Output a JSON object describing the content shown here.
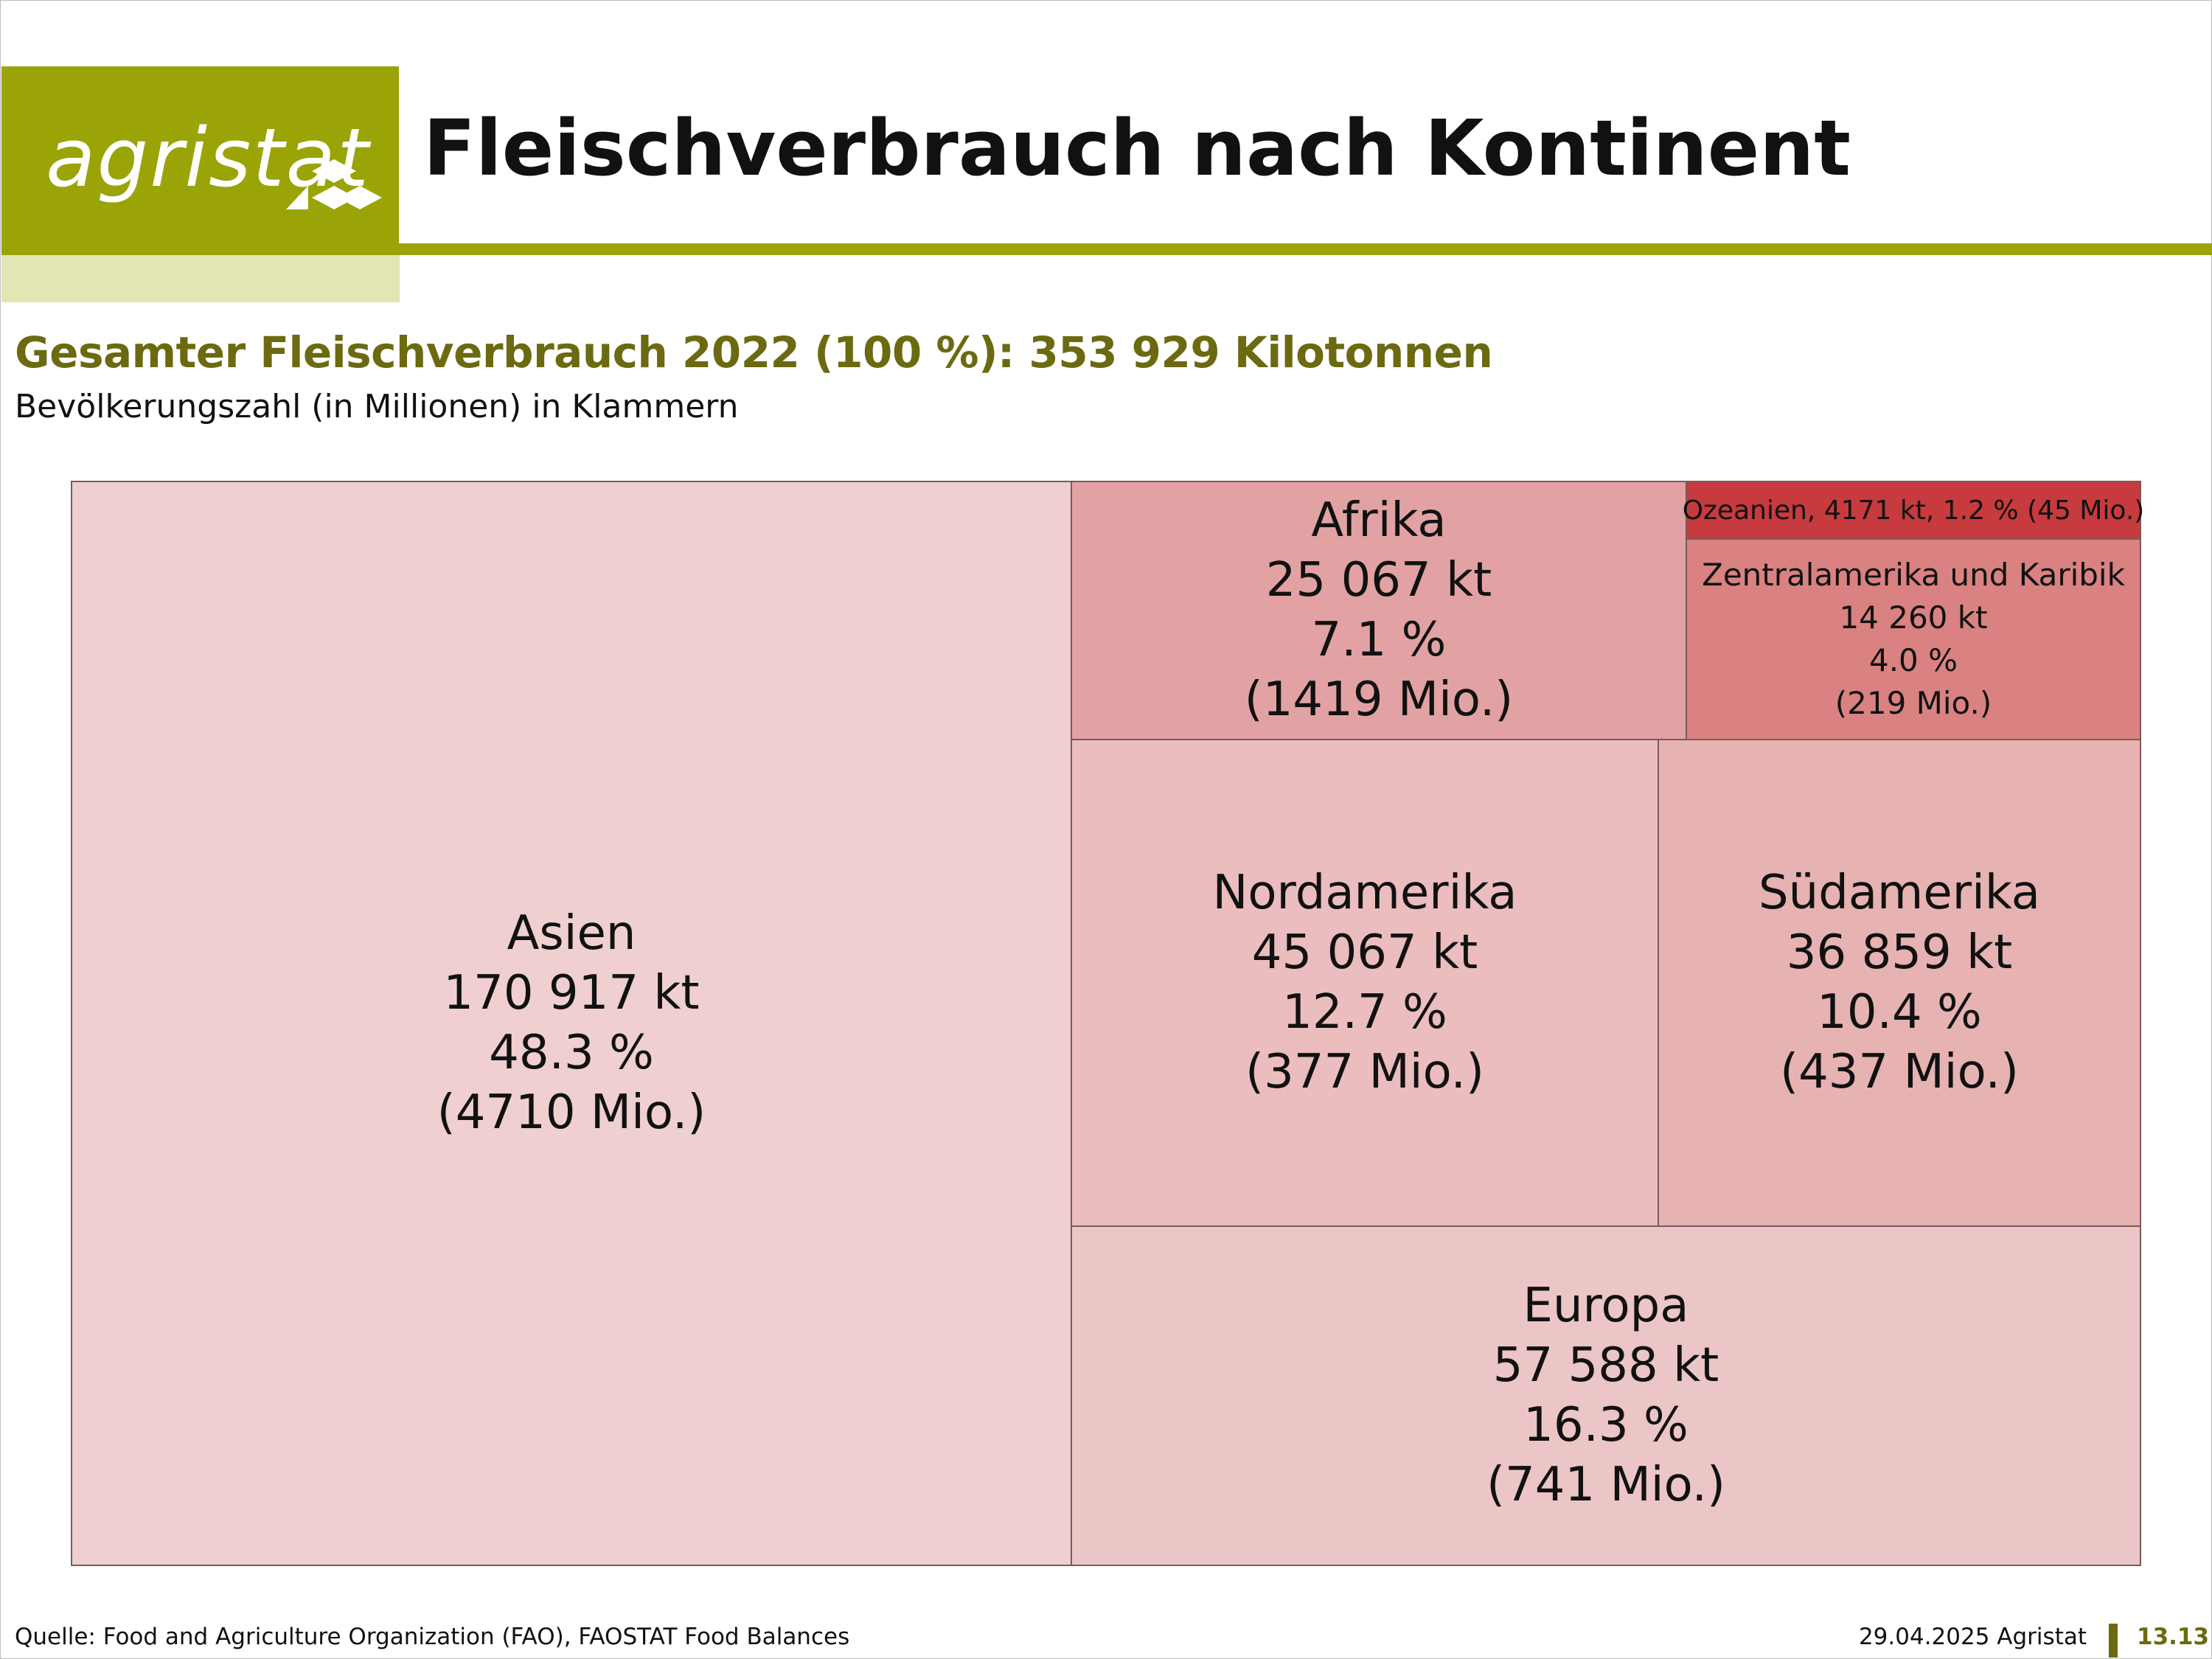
{
  "header": {
    "logo_text": "agristat",
    "title": "Fleischverbrauch nach Kontinent"
  },
  "subtitle": "Gesamter Fleischverbrauch 2022 (100 %): 353 929 Kilotonnen",
  "note": "Bevölkerungszahl (in Millionen) in Klammern",
  "chart_data": {
    "type": "treemap",
    "title": "Gesamter Fleischverbrauch 2022 (100 %): 353 929 Kilotonnen",
    "subtitle": "Bevölkerungszahl (in Millionen) in Klammern",
    "total_kt": 353929,
    "categories": [
      "Asien",
      "Europa",
      "Nordamerika",
      "Südamerika",
      "Afrika",
      "Zentralamerika und Karibik",
      "Ozeanien"
    ],
    "values_kt": [
      170917,
      57588,
      45067,
      36859,
      25067,
      14260,
      4171
    ],
    "share_percent": [
      48.3,
      16.3,
      12.7,
      10.4,
      7.1,
      4.0,
      1.2
    ],
    "population_mio": [
      4710,
      741,
      377,
      437,
      1419,
      219,
      45
    ],
    "tiles": [
      {
        "name": "Asien",
        "kt": "170 917 kt",
        "pct": "48.3 %",
        "pop": "(4710 Mio.)",
        "color": "#efcfcf"
      },
      {
        "name": "Europa",
        "kt": "57 588 kt",
        "pct": "16.3 %",
        "pop": "(741 Mio.)",
        "color": "#ecc5c6"
      },
      {
        "name": "Nordamerika",
        "kt": "45 067 kt",
        "pct": "12.7 %",
        "pop": "(377 Mio.)",
        "color": "#ebbdbe"
      },
      {
        "name": "Südamerika",
        "kt": "36 859 kt",
        "pct": "10.4 %",
        "pop": "(437 Mio.)",
        "color": "#e7b2b2"
      },
      {
        "name": "Afrika",
        "kt": "25 067 kt",
        "pct": "7.1 %",
        "pop": "(1419 Mio.)",
        "color": "#e2a2a3"
      },
      {
        "name": "Zentralamerika und Karibik",
        "kt": "14 260 kt",
        "pct": "4.0 %",
        "pop": "(219 Mio.)",
        "color": "#d98281"
      },
      {
        "name": "Ozeanien",
        "label": "Ozeanien, 4171 kt, 1.2 % (45 Mio.)",
        "color": "#c73a3d"
      }
    ]
  },
  "footer": {
    "source": "Quelle: Food and Agriculture Organization (FAO), FAOSTAT Food Balances",
    "date": "29.04.2025 Agristat",
    "page": "13.13"
  },
  "colors": {
    "brand_green": "#9aa407",
    "brand_light": "#e2e6b4",
    "brand_dark": "#6b6a10"
  }
}
